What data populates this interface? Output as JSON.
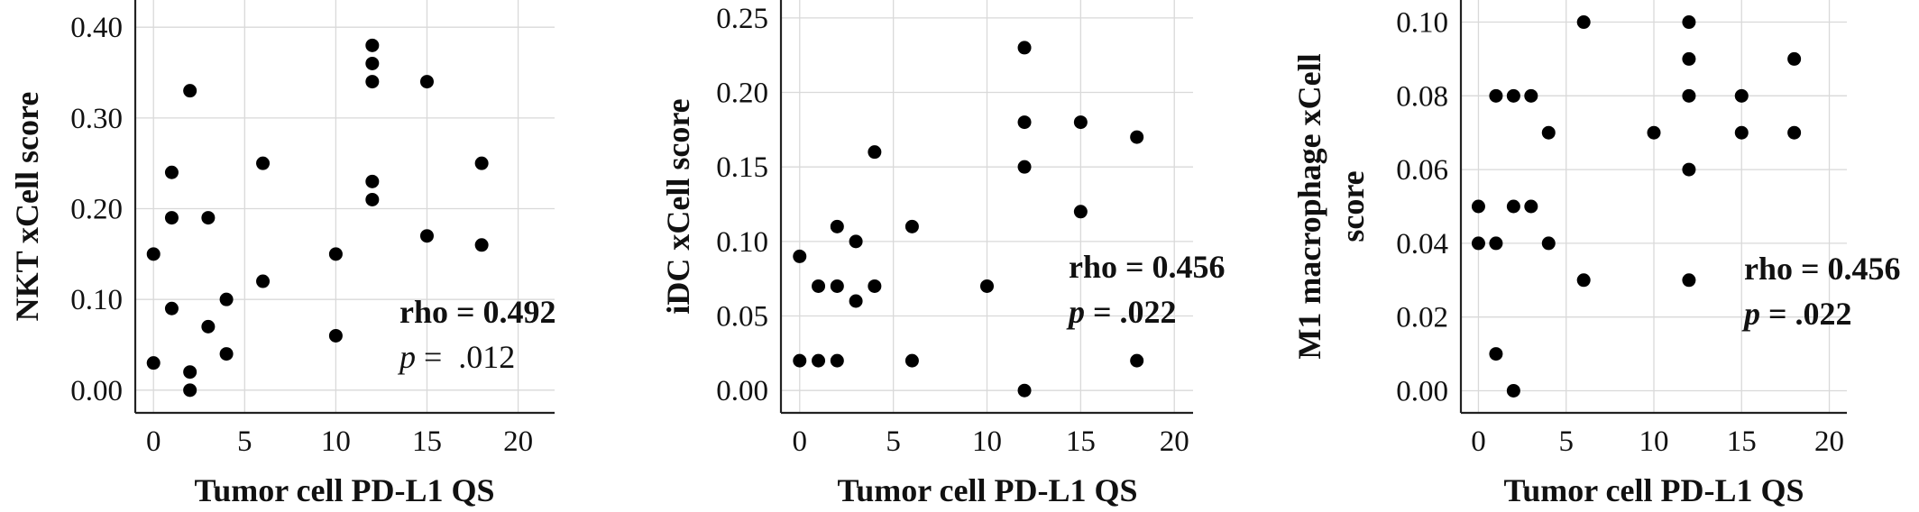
{
  "chart_data": [
    {
      "type": "scatter",
      "xlabel": "Tumor cell PD-L1 QS",
      "ylabel": "NKT xCell score",
      "xlim": [
        -1,
        22
      ],
      "ylim": [
        -0.025,
        0.43
      ],
      "x_ticks": [
        0,
        5,
        10,
        15,
        20
      ],
      "y_ticks": [
        0.0,
        0.1,
        0.2,
        0.3,
        0.4
      ],
      "x_tick_labels": [
        "0",
        "5",
        "10",
        "15",
        "20"
      ],
      "y_tick_labels": [
        "0.00",
        "0.10",
        "0.20",
        "0.30",
        "0.40"
      ],
      "grid": true,
      "points": [
        {
          "x": 0,
          "y": 0.15
        },
        {
          "x": 0,
          "y": 0.03
        },
        {
          "x": 1,
          "y": 0.24
        },
        {
          "x": 1,
          "y": 0.19
        },
        {
          "x": 1,
          "y": 0.09
        },
        {
          "x": 2,
          "y": 0.33
        },
        {
          "x": 2,
          "y": 0.02
        },
        {
          "x": 2,
          "y": 0.0
        },
        {
          "x": 3,
          "y": 0.19
        },
        {
          "x": 3,
          "y": 0.07
        },
        {
          "x": 4,
          "y": 0.1
        },
        {
          "x": 4,
          "y": 0.04
        },
        {
          "x": 6,
          "y": 0.25
        },
        {
          "x": 6,
          "y": 0.12
        },
        {
          "x": 10,
          "y": 0.15
        },
        {
          "x": 10,
          "y": 0.06
        },
        {
          "x": 12,
          "y": 0.38
        },
        {
          "x": 12,
          "y": 0.36
        },
        {
          "x": 12,
          "y": 0.34
        },
        {
          "x": 12,
          "y": 0.23
        },
        {
          "x": 12,
          "y": 0.21
        },
        {
          "x": 15,
          "y": 0.34
        },
        {
          "x": 15,
          "y": 0.17
        },
        {
          "x": 18,
          "y": 0.25
        },
        {
          "x": 18,
          "y": 0.16
        }
      ],
      "annotation": {
        "rho": "rho = 0.492",
        "p_symbol": "p",
        "p_value": " =  .012",
        "p_bold": false
      }
    },
    {
      "type": "scatter",
      "xlabel": "Tumor cell PD-L1 QS",
      "ylabel": "iDC xCell score",
      "xlim": [
        -1,
        21
      ],
      "ylim": [
        -0.015,
        0.262
      ],
      "x_ticks": [
        0,
        5,
        10,
        15,
        20
      ],
      "y_ticks": [
        0.0,
        0.05,
        0.1,
        0.15,
        0.2,
        0.25
      ],
      "x_tick_labels": [
        "0",
        "5",
        "10",
        "15",
        "20"
      ],
      "y_tick_labels": [
        "0.00",
        "0.05",
        "0.10",
        "0.15",
        "0.20",
        "0.25"
      ],
      "grid": true,
      "points": [
        {
          "x": 0,
          "y": 0.09
        },
        {
          "x": 0,
          "y": 0.02
        },
        {
          "x": 1,
          "y": 0.07
        },
        {
          "x": 1,
          "y": 0.02
        },
        {
          "x": 2,
          "y": 0.11
        },
        {
          "x": 2,
          "y": 0.07
        },
        {
          "x": 2,
          "y": 0.02
        },
        {
          "x": 3,
          "y": 0.1
        },
        {
          "x": 3,
          "y": 0.06
        },
        {
          "x": 4,
          "y": 0.16
        },
        {
          "x": 4,
          "y": 0.07
        },
        {
          "x": 6,
          "y": 0.11
        },
        {
          "x": 6,
          "y": 0.02
        },
        {
          "x": 10,
          "y": 0.07
        },
        {
          "x": 12,
          "y": 0.23
        },
        {
          "x": 12,
          "y": 0.18
        },
        {
          "x": 12,
          "y": 0.15
        },
        {
          "x": 12,
          "y": 0.0
        },
        {
          "x": 15,
          "y": 0.18
        },
        {
          "x": 15,
          "y": 0.12
        },
        {
          "x": 18,
          "y": 0.17
        },
        {
          "x": 18,
          "y": 0.02
        }
      ],
      "annotation": {
        "rho": "rho = 0.456",
        "p_symbol": "p",
        "p_value": " = .022",
        "p_bold": true
      }
    },
    {
      "type": "scatter",
      "xlabel": "Tumor cell PD-L1 QS",
      "ylabel": "M1 macrophage xCell score",
      "ylabel_lines": [
        "M1 macrophage xCell",
        "score"
      ],
      "xlim": [
        -1,
        21
      ],
      "ylim": [
        -0.006,
        0.106
      ],
      "x_ticks": [
        0,
        5,
        10,
        15,
        20
      ],
      "y_ticks": [
        0.0,
        0.02,
        0.04,
        0.06,
        0.08,
        0.1
      ],
      "x_tick_labels": [
        "0",
        "5",
        "10",
        "15",
        "20"
      ],
      "y_tick_labels": [
        "0.00",
        "0.02",
        "0.04",
        "0.06",
        "0.08",
        "0.10"
      ],
      "grid": true,
      "points": [
        {
          "x": 0,
          "y": 0.05
        },
        {
          "x": 0,
          "y": 0.04
        },
        {
          "x": 1,
          "y": 0.08
        },
        {
          "x": 1,
          "y": 0.04
        },
        {
          "x": 1,
          "y": 0.01
        },
        {
          "x": 2,
          "y": 0.08
        },
        {
          "x": 2,
          "y": 0.05
        },
        {
          "x": 2,
          "y": 0.0
        },
        {
          "x": 3,
          "y": 0.08
        },
        {
          "x": 3,
          "y": 0.05
        },
        {
          "x": 4,
          "y": 0.07
        },
        {
          "x": 4,
          "y": 0.04
        },
        {
          "x": 6,
          "y": 0.1
        },
        {
          "x": 6,
          "y": 0.03
        },
        {
          "x": 10,
          "y": 0.07
        },
        {
          "x": 12,
          "y": 0.1
        },
        {
          "x": 12,
          "y": 0.09
        },
        {
          "x": 12,
          "y": 0.08
        },
        {
          "x": 12,
          "y": 0.06
        },
        {
          "x": 12,
          "y": 0.03
        },
        {
          "x": 15,
          "y": 0.08
        },
        {
          "x": 15,
          "y": 0.07
        },
        {
          "x": 18,
          "y": 0.09
        },
        {
          "x": 18,
          "y": 0.07
        }
      ],
      "annotation": {
        "rho": "rho = 0.456",
        "p_symbol": "p",
        "p_value": " = .022",
        "p_bold": true
      }
    }
  ],
  "colors": {
    "points": "#000000",
    "grid": "#d9d9d9",
    "axis": "#222222",
    "text": "#111111"
  }
}
